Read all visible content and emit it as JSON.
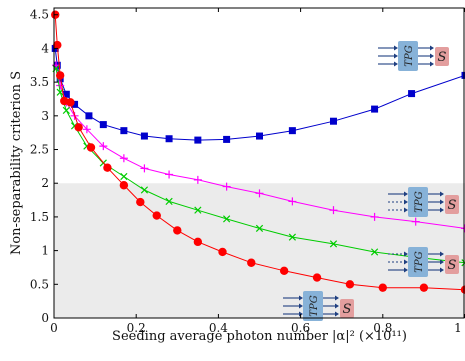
{
  "chart_data": {
    "type": "line",
    "title": "",
    "xlabel": "Seeding average photon number |α|² (×10¹¹)",
    "ylabel": "Non-separability criterion S",
    "xlim": [
      0,
      1
    ],
    "ylim": [
      0,
      4.6
    ],
    "grid": false,
    "shaded_region": {
      "y_from": 0,
      "y_to": 2,
      "color": "#ebebeb"
    },
    "xticks": [
      "0",
      "0.2",
      "0.4",
      "0.6",
      "0.8",
      "1"
    ],
    "xtick_values": [
      0,
      0.2,
      0.4,
      0.6,
      0.8,
      1
    ],
    "yticks": [
      "0",
      "0.5",
      "1",
      "1.5",
      "2",
      "2.5",
      "3",
      "3.5",
      "4",
      "4.5"
    ],
    "ytick_values": [
      0,
      0.5,
      1,
      1.5,
      2,
      2.5,
      3,
      3.5,
      4,
      4.5
    ],
    "series": [
      {
        "color": "#0000cc",
        "marker": "square",
        "x": [
          0.003,
          0.008,
          0.015,
          0.03,
          0.05,
          0.085,
          0.12,
          0.17,
          0.22,
          0.28,
          0.35,
          0.42,
          0.5,
          0.58,
          0.68,
          0.78,
          0.87,
          1.0
        ],
        "y": [
          4.0,
          3.75,
          3.55,
          3.32,
          3.17,
          3.0,
          2.87,
          2.78,
          2.7,
          2.66,
          2.64,
          2.65,
          2.7,
          2.78,
          2.92,
          3.1,
          3.33,
          3.6
        ]
      },
      {
        "color": "#ff00ff",
        "marker": "plus",
        "x": [
          0.005,
          0.015,
          0.03,
          0.05,
          0.08,
          0.12,
          0.17,
          0.22,
          0.28,
          0.35,
          0.42,
          0.5,
          0.58,
          0.68,
          0.78,
          0.88,
          1.0
        ],
        "y": [
          3.75,
          3.45,
          3.2,
          3.0,
          2.8,
          2.55,
          2.37,
          2.22,
          2.13,
          2.05,
          1.95,
          1.85,
          1.73,
          1.6,
          1.5,
          1.43,
          1.33
        ]
      },
      {
        "color": "#00cc00",
        "marker": "x",
        "x": [
          0.005,
          0.015,
          0.03,
          0.05,
          0.08,
          0.12,
          0.17,
          0.22,
          0.28,
          0.35,
          0.42,
          0.5,
          0.58,
          0.68,
          0.78,
          0.88,
          1.0
        ],
        "y": [
          3.7,
          3.35,
          3.08,
          2.85,
          2.55,
          2.3,
          2.1,
          1.9,
          1.73,
          1.6,
          1.47,
          1.33,
          1.2,
          1.1,
          0.98,
          0.9,
          0.82
        ]
      },
      {
        "color": "#ff0000",
        "marker": "circle",
        "x": [
          0.003,
          0.008,
          0.015,
          0.025,
          0.04,
          0.06,
          0.09,
          0.13,
          0.17,
          0.21,
          0.25,
          0.3,
          0.35,
          0.41,
          0.48,
          0.56,
          0.64,
          0.72,
          0.8,
          0.9,
          1.0
        ],
        "y": [
          4.5,
          4.05,
          3.6,
          3.22,
          3.2,
          2.83,
          2.53,
          2.23,
          1.97,
          1.72,
          1.52,
          1.3,
          1.13,
          0.98,
          0.82,
          0.7,
          0.6,
          0.5,
          0.45,
          0.45,
          0.42
        ]
      }
    ]
  },
  "insets": {
    "tpg_label": "TPG",
    "s_label": "S",
    "tpg_color": "#87b2d8",
    "s_color": "#e39e9e",
    "arrow_color": "#1f3f80"
  }
}
